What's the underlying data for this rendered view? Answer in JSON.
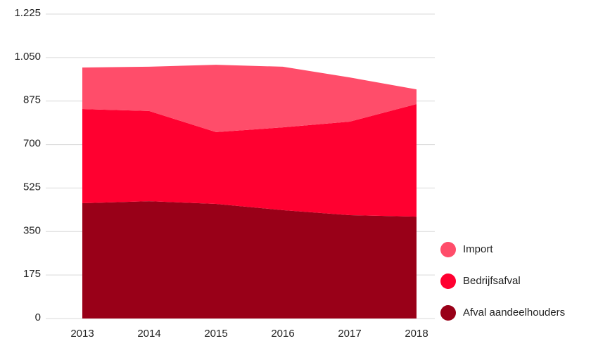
{
  "chart_data": {
    "type": "stacked_area",
    "categories": [
      "2013",
      "2014",
      "2015",
      "2016",
      "2017",
      "2018"
    ],
    "series": [
      {
        "name": "Afval aandeelhouders",
        "color": "#990018",
        "values": [
          464,
          472,
          461,
          436,
          416,
          410
        ]
      },
      {
        "name": "Bedrijfsafval",
        "color": "#ff0030",
        "values": [
          379,
          363,
          289,
          333,
          376,
          453
        ]
      },
      {
        "name": "Import",
        "color": "#ff4d6a",
        "values": [
          167,
          178,
          271,
          244,
          178,
          59
        ]
      }
    ],
    "ylim": [
      0,
      1225
    ],
    "yticks": [
      0,
      175,
      350,
      525,
      700,
      875,
      {
        "value": 1050,
        "label": "1.050"
      },
      {
        "value": 1225,
        "label": "1.225"
      }
    ],
    "grid": true,
    "legend": "right"
  }
}
